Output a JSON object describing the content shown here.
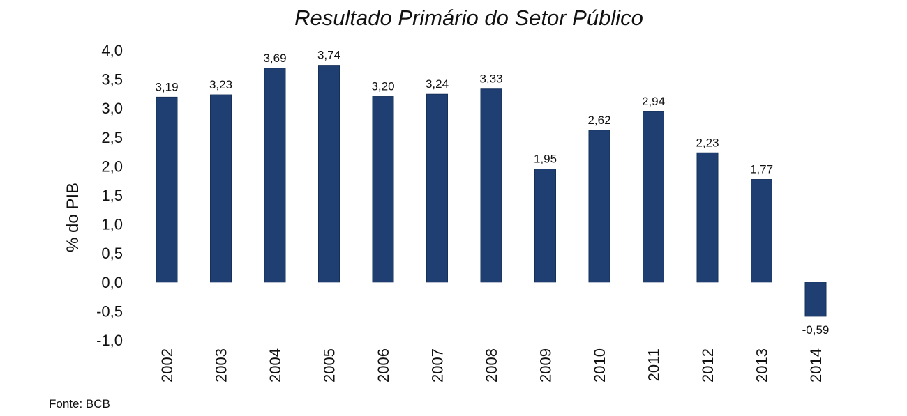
{
  "chart_data": {
    "type": "bar",
    "title": "Resultado Primário do Setor Público",
    "ylabel": "% do PIB",
    "xlabel": "",
    "categories": [
      "2002",
      "2003",
      "2004",
      "2005",
      "2006",
      "2007",
      "2008",
      "2009",
      "2010",
      "2011",
      "2012",
      "2013",
      "2014"
    ],
    "values": [
      3.19,
      3.23,
      3.69,
      3.74,
      3.2,
      3.24,
      3.33,
      1.95,
      2.62,
      2.94,
      2.23,
      1.77,
      -0.59
    ],
    "value_labels": [
      "3,19",
      "3,23",
      "3,69",
      "3,74",
      "3,20",
      "3,24",
      "3,33",
      "1,95",
      "2,62",
      "2,94",
      "2,23",
      "1,77",
      "-0,59"
    ],
    "yticks": [
      4.0,
      3.5,
      3.0,
      2.5,
      2.0,
      1.5,
      1.0,
      0.5,
      0.0,
      -0.5,
      -1.0
    ],
    "ytick_labels": [
      "4,0",
      "3,5",
      "3,0",
      "2,5",
      "2,0",
      "1,5",
      "1,0",
      "0,5",
      "0,0",
      "-0,5",
      "-1,0"
    ],
    "ylim": [
      -1.0,
      4.0
    ],
    "grid": false,
    "legend": "none",
    "bar_color": "#1f3f73",
    "source": "Fonte: BCB"
  }
}
